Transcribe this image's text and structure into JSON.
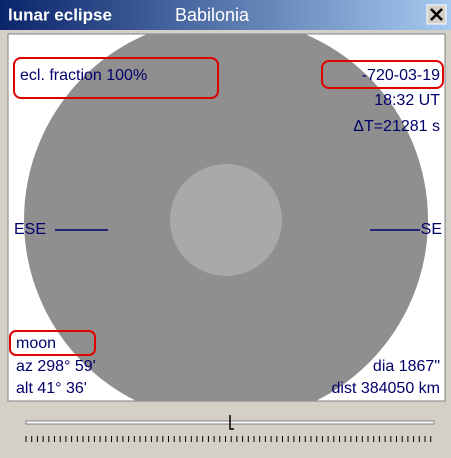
{
  "window": {
    "title": "lunar eclipse",
    "location": "Babilonia"
  },
  "view": {
    "fraction": "ecl. fraction 100%",
    "date": "-720-03-19",
    "time": "18:32 UT",
    "delta_t": "ΔT=21281 s",
    "left_direction": "ESE",
    "right_direction": "SE",
    "object": "moon",
    "azimuth": "az 298° 59'",
    "altitude": "alt 41° 36'",
    "diameter": "dia 1867\"",
    "distance": "dist 384050 km"
  }
}
